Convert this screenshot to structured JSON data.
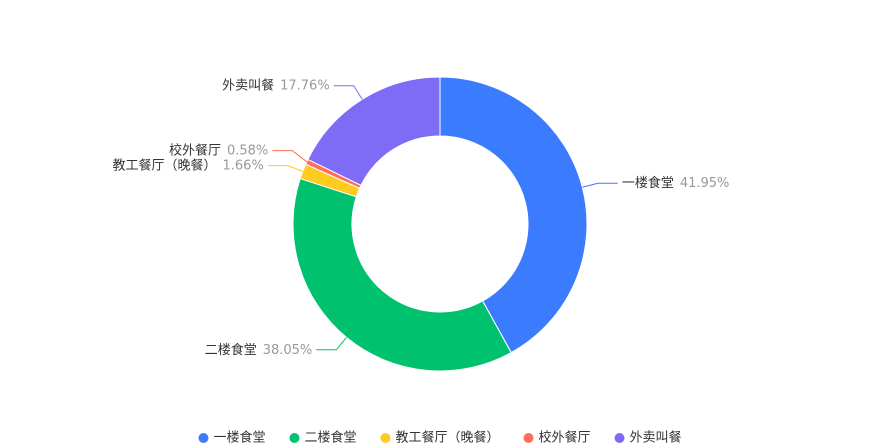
{
  "chart_data": {
    "type": "pie",
    "categories": [
      "一楼食堂",
      "二楼食堂",
      "教工餐厅（晚餐）",
      "校外餐厅",
      "外卖叫餐"
    ],
    "values": [
      41.95,
      38.05,
      1.66,
      0.58,
      17.76
    ],
    "value_labels": [
      "41.95%",
      "38.05%",
      "1.66%",
      "0.58%",
      "17.76%"
    ],
    "colors": [
      "#3b7cff",
      "#00c16e",
      "#ffcb1f",
      "#ff6e5a",
      "#7e6cf7"
    ],
    "legend": "bottom"
  }
}
